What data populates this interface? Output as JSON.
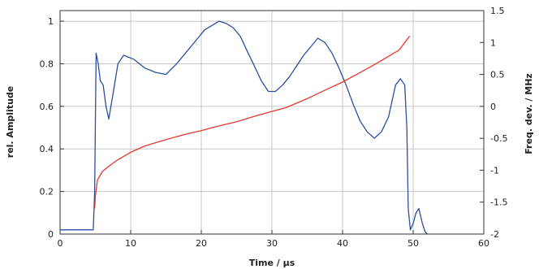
{
  "chart_data": {
    "type": "line",
    "xlabel": "Time / µs",
    "ylabel": "rel. Amplitude",
    "y2label": "Freq. dev. / MHz",
    "xlim": [
      0,
      60
    ],
    "ylim": [
      0,
      1.05
    ],
    "y2lim": [
      -2,
      1.5
    ],
    "xticks": [
      "0",
      "10",
      "20",
      "30",
      "40",
      "50",
      "60"
    ],
    "yticks": [
      "0",
      "0.2",
      "0.4",
      "0.6",
      "0.8",
      "1"
    ],
    "y2ticks": [
      "-2",
      "-1.5",
      "-1",
      "-0.5",
      "0",
      "0.5",
      "1",
      "1.5"
    ],
    "grid": true,
    "series": [
      {
        "axis": "left",
        "color": "#2b4ea0",
        "x": [
          0,
          4.7,
          4.9,
          5.1,
          5.4,
          5.7,
          6.1,
          6.5,
          6.9,
          7.4,
          8.2,
          9.0,
          10.5,
          12,
          13.5,
          15,
          16.5,
          18,
          19.5,
          20.5,
          21.5,
          22.5,
          23.5,
          24.5,
          25.5,
          26.5,
          27.5,
          28.5,
          29.5,
          30.5,
          31.5,
          32.5,
          33.5,
          34.5,
          35.5,
          36.5,
          37.5,
          38.5,
          39.5,
          40.5,
          41.5,
          42.5,
          43.5,
          44.5,
          45.5,
          46.5,
          47.5,
          48.2,
          48.8,
          49.1,
          49.3,
          49.6,
          50.0,
          50.4,
          50.8,
          51.3,
          51.7,
          52.0
        ],
        "y": [
          0.02,
          0.02,
          0.2,
          0.85,
          0.8,
          0.72,
          0.7,
          0.6,
          0.54,
          0.64,
          0.8,
          0.84,
          0.82,
          0.78,
          0.76,
          0.75,
          0.8,
          0.86,
          0.92,
          0.96,
          0.98,
          1.0,
          0.99,
          0.97,
          0.93,
          0.86,
          0.79,
          0.72,
          0.67,
          0.67,
          0.7,
          0.74,
          0.79,
          0.84,
          0.88,
          0.92,
          0.9,
          0.85,
          0.78,
          0.7,
          0.61,
          0.53,
          0.48,
          0.45,
          0.48,
          0.55,
          0.7,
          0.73,
          0.7,
          0.5,
          0.12,
          0.02,
          0.05,
          0.1,
          0.12,
          0.05,
          0.01,
          0.0
        ]
      },
      {
        "axis": "right",
        "color": "#e8372c",
        "x": [
          4.9,
          5.0,
          5.3,
          6,
          7,
          8,
          10,
          12,
          15,
          18,
          20,
          22,
          25,
          28,
          30,
          32,
          35,
          38,
          40,
          42,
          44,
          46,
          48,
          49.5
        ],
        "y": [
          -1.6,
          -1.4,
          -1.15,
          -1.02,
          -0.93,
          -0.85,
          -0.72,
          -0.62,
          -0.52,
          -0.43,
          -0.38,
          -0.32,
          -0.24,
          -0.14,
          -0.08,
          -0.02,
          0.12,
          0.28,
          0.38,
          0.5,
          0.62,
          0.75,
          0.88,
          1.1
        ]
      }
    ]
  }
}
